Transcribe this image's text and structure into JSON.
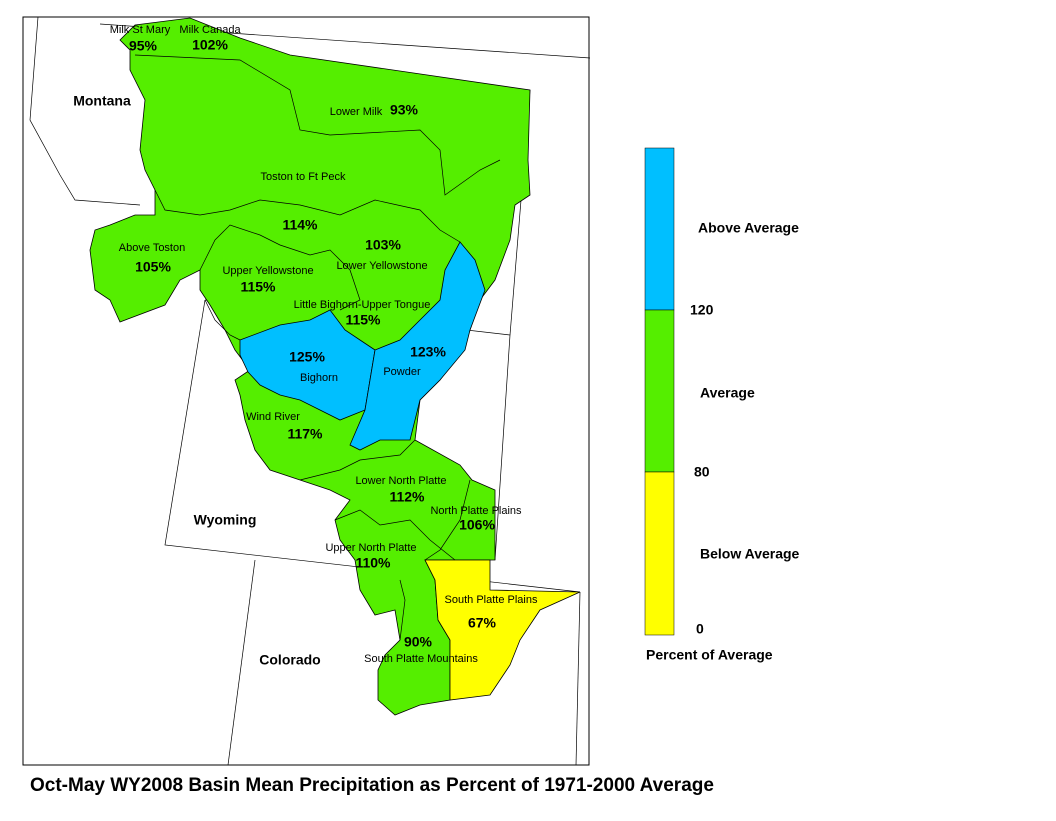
{
  "map": {
    "title": "Oct-May WY2008 Basin Mean Precipitation as Percent of 1971-2000 Average",
    "states": [
      "Montana",
      "Wyoming",
      "Colorado"
    ],
    "basins": [
      {
        "name": "Milk St Mary",
        "percent": "95%"
      },
      {
        "name": "Milk Canada",
        "percent": "102%"
      },
      {
        "name": "Lower Milk",
        "percent": "93%"
      },
      {
        "name": "Toston to Ft Peck",
        "percent": "114%"
      },
      {
        "name": "Above Toston",
        "percent": "105%"
      },
      {
        "name": "Lower Yellowstone",
        "percent": "103%"
      },
      {
        "name": "Upper Yellowstone",
        "percent": "115%"
      },
      {
        "name": "Little Bighorn-Upper Tongue",
        "percent": "115%"
      },
      {
        "name": "Bighorn",
        "percent": "125%"
      },
      {
        "name": "Powder",
        "percent": "123%"
      },
      {
        "name": "Wind River",
        "percent": "117%"
      },
      {
        "name": "Lower North Platte",
        "percent": "112%"
      },
      {
        "name": "North Platte Plains",
        "percent": "106%"
      },
      {
        "name": "Upper North Platte",
        "percent": "110%"
      },
      {
        "name": "South Platte Plains",
        "percent": "67%"
      },
      {
        "name": "South Platte Mountains",
        "percent": "90%"
      }
    ],
    "legend": {
      "classes": [
        "Above Average",
        "Average",
        "Below Average"
      ],
      "breaks": [
        120,
        80,
        0
      ],
      "title": "Percent of Average"
    }
  }
}
